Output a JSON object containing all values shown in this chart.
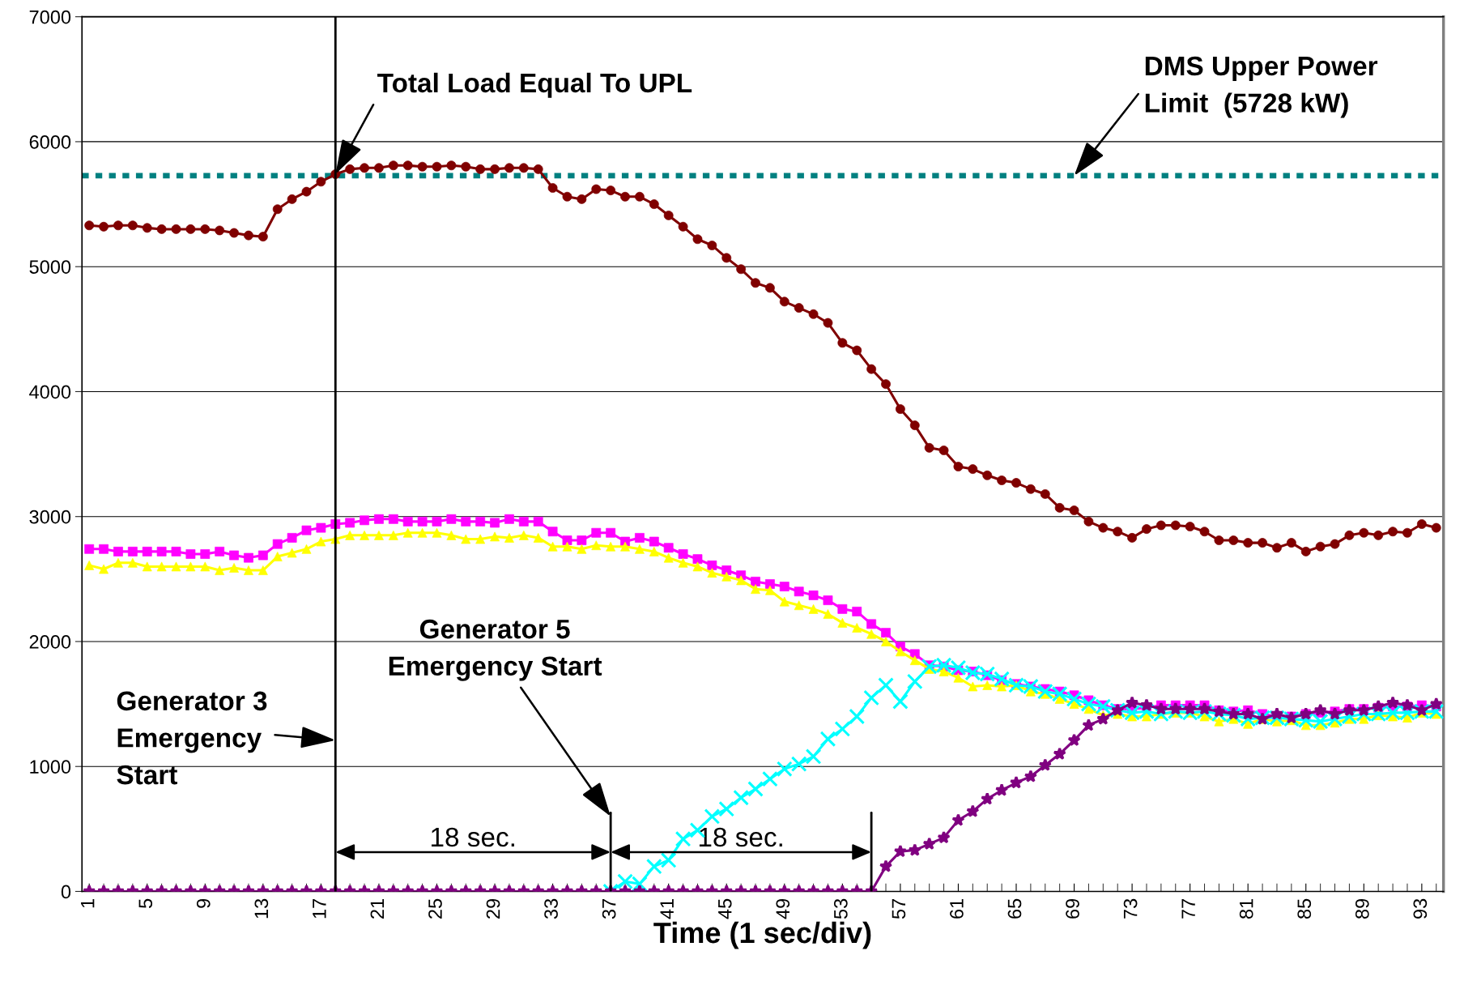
{
  "chart_data": {
    "type": "line",
    "xlabel": "Time (1 sec/div)",
    "x": [
      1,
      2,
      3,
      4,
      5,
      6,
      7,
      8,
      9,
      10,
      11,
      12,
      13,
      14,
      15,
      16,
      17,
      18,
      19,
      20,
      21,
      22,
      23,
      24,
      25,
      26,
      27,
      28,
      29,
      30,
      31,
      32,
      33,
      34,
      35,
      36,
      37,
      38,
      39,
      40,
      41,
      42,
      43,
      44,
      45,
      46,
      47,
      48,
      49,
      50,
      51,
      52,
      53,
      54,
      55,
      56,
      57,
      58,
      59,
      60,
      61,
      62,
      63,
      64,
      65,
      66,
      67,
      68,
      69,
      70,
      71,
      72,
      73,
      74,
      75,
      76,
      77,
      78,
      79,
      80,
      81,
      82,
      83,
      84,
      85,
      86,
      87,
      88,
      89,
      90,
      91,
      92,
      93,
      94
    ],
    "xlim": [
      0.5,
      94.5
    ],
    "xticks": [
      1,
      5,
      9,
      13,
      17,
      21,
      25,
      29,
      33,
      37,
      41,
      45,
      49,
      53,
      57,
      61,
      65,
      69,
      73,
      77,
      81,
      85,
      89,
      93
    ],
    "ylim": [
      0,
      7000
    ],
    "yticks": [
      0,
      1000,
      2000,
      3000,
      4000,
      5000,
      6000,
      7000
    ],
    "grid": "y",
    "legend": false,
    "series": [
      {
        "color": "#800000",
        "marker": "circle",
        "values": [
          5330,
          5320,
          5330,
          5330,
          5310,
          5300,
          5300,
          5300,
          5300,
          5290,
          5270,
          5250,
          5240,
          5460,
          5540,
          5600,
          5680,
          5740,
          5780,
          5790,
          5790,
          5810,
          5810,
          5800,
          5800,
          5810,
          5800,
          5780,
          5780,
          5790,
          5790,
          5780,
          5630,
          5560,
          5540,
          5620,
          5610,
          5560,
          5560,
          5500,
          5410,
          5320,
          5220,
          5170,
          5070,
          4980,
          4870,
          4830,
          4720,
          4670,
          4620,
          4550,
          4390,
          4330,
          4180,
          4060,
          3860,
          3730,
          3550,
          3530,
          3400,
          3380,
          3330,
          3290,
          3270,
          3220,
          3180,
          3070,
          3050,
          2960,
          2910,
          2880,
          2830,
          2900,
          2930,
          2930,
          2920,
          2880,
          2810,
          2810,
          2790,
          2790,
          2750,
          2790,
          2720,
          2760,
          2780,
          2850,
          2870,
          2850,
          2880,
          2870,
          2940,
          2910
        ]
      },
      {
        "color": "#ff00ff",
        "marker": "square",
        "values": [
          2740,
          2740,
          2720,
          2720,
          2720,
          2720,
          2720,
          2700,
          2700,
          2720,
          2690,
          2670,
          2690,
          2780,
          2830,
          2890,
          2910,
          2940,
          2950,
          2970,
          2980,
          2980,
          2960,
          2960,
          2960,
          2980,
          2960,
          2960,
          2950,
          2980,
          2960,
          2960,
          2880,
          2810,
          2810,
          2870,
          2870,
          2800,
          2830,
          2800,
          2750,
          2700,
          2660,
          2610,
          2570,
          2530,
          2480,
          2460,
          2440,
          2400,
          2370,
          2330,
          2260,
          2240,
          2140,
          2070,
          1960,
          1900,
          1810,
          1800,
          1770,
          1760,
          1730,
          1690,
          1660,
          1640,
          1620,
          1600,
          1570,
          1530,
          1490,
          1460,
          1460,
          1470,
          1490,
          1490,
          1490,
          1490,
          1450,
          1440,
          1450,
          1420,
          1400,
          1400,
          1420,
          1430,
          1440,
          1460,
          1460,
          1470,
          1480,
          1480,
          1490,
          1480
        ]
      },
      {
        "color": "#ffff00",
        "marker": "triangle",
        "values": [
          2610,
          2580,
          2630,
          2630,
          2600,
          2600,
          2600,
          2600,
          2600,
          2570,
          2590,
          2570,
          2570,
          2680,
          2710,
          2740,
          2800,
          2820,
          2850,
          2850,
          2850,
          2850,
          2870,
          2870,
          2870,
          2850,
          2820,
          2820,
          2840,
          2830,
          2850,
          2830,
          2760,
          2760,
          2740,
          2770,
          2760,
          2760,
          2740,
          2720,
          2670,
          2630,
          2600,
          2550,
          2520,
          2490,
          2420,
          2410,
          2320,
          2290,
          2260,
          2220,
          2150,
          2110,
          2060,
          2000,
          1920,
          1850,
          1780,
          1760,
          1710,
          1640,
          1650,
          1640,
          1650,
          1600,
          1580,
          1540,
          1500,
          1460,
          1410,
          1420,
          1400,
          1400,
          1420,
          1430,
          1430,
          1400,
          1360,
          1380,
          1340,
          1380,
          1360,
          1370,
          1330,
          1330,
          1350,
          1380,
          1380,
          1410,
          1400,
          1390,
          1430,
          1420
        ]
      },
      {
        "color": "#00ffff",
        "marker": "cross",
        "values": [
          null,
          null,
          null,
          null,
          null,
          null,
          null,
          null,
          null,
          null,
          null,
          null,
          null,
          null,
          null,
          null,
          null,
          null,
          null,
          null,
          null,
          null,
          null,
          null,
          null,
          null,
          null,
          null,
          null,
          null,
          null,
          null,
          null,
          null,
          null,
          null,
          0,
          80,
          60,
          200,
          250,
          420,
          490,
          600,
          660,
          750,
          820,
          900,
          980,
          1020,
          1080,
          1220,
          1300,
          1400,
          1550,
          1650,
          1520,
          1680,
          1800,
          1810,
          1790,
          1750,
          1740,
          1700,
          1650,
          1640,
          1600,
          1580,
          1540,
          1500,
          1480,
          1450,
          1430,
          1440,
          1420,
          1440,
          1430,
          1440,
          1420,
          1410,
          1380,
          1390,
          1390,
          1380,
          1370,
          1360,
          1380,
          1400,
          1420,
          1420,
          1430,
          1430,
          1440,
          1440
        ]
      },
      {
        "color": "#800080",
        "marker": "star",
        "values": [
          0,
          0,
          0,
          0,
          0,
          0,
          0,
          0,
          0,
          0,
          0,
          0,
          0,
          0,
          0,
          0,
          0,
          0,
          0,
          0,
          0,
          0,
          0,
          0,
          0,
          0,
          0,
          0,
          0,
          0,
          0,
          0,
          0,
          0,
          0,
          0,
          0,
          0,
          0,
          0,
          0,
          0,
          0,
          0,
          0,
          0,
          0,
          0,
          0,
          0,
          0,
          0,
          0,
          0,
          0,
          200,
          320,
          330,
          380,
          430,
          570,
          640,
          740,
          810,
          870,
          920,
          1010,
          1100,
          1210,
          1330,
          1380,
          1450,
          1510,
          1490,
          1460,
          1460,
          1460,
          1460,
          1440,
          1420,
          1420,
          1380,
          1420,
          1390,
          1420,
          1450,
          1420,
          1450,
          1450,
          1480,
          1510,
          1490,
          1450,
          1500
        ]
      }
    ],
    "ref_lines": [
      {
        "axis": "y",
        "value": 5728,
        "color": "#008080",
        "line_style": "dashed"
      },
      {
        "axis": "x",
        "value": 18,
        "color": "#000000"
      },
      {
        "axis": "x",
        "value": 37,
        "color": "#000000"
      },
      {
        "axis": "x",
        "value": 55,
        "color": "#000000"
      }
    ],
    "annotations": [
      {
        "text": "Total Load Equal To UPL",
        "x": 18,
        "y": 5740
      },
      {
        "text": "DMS Upper Power\nLimit  (5728 kW)",
        "x": 69,
        "y": 5728
      },
      {
        "text": "Generator 3\nEmergency\nStart",
        "x": 18,
        "y": 1210
      },
      {
        "text": "Generator 5\nEmergency Start",
        "x": 37,
        "y": 600
      },
      "18 sec.",
      "18 sec."
    ]
  }
}
